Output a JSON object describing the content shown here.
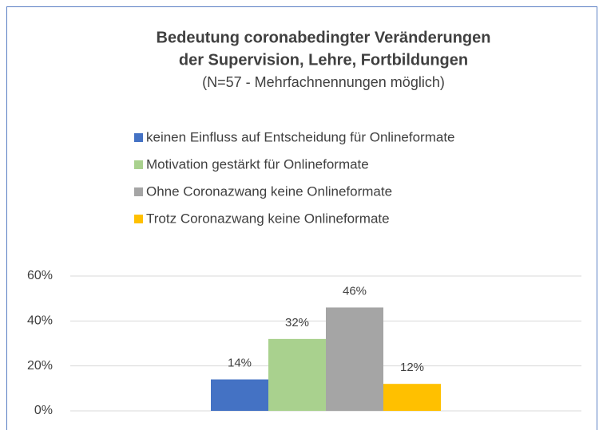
{
  "chart_data": {
    "type": "bar",
    "title": [
      "Bedeutung coronabedingter Veränderungen",
      "der Supervision, Lehre, Fortbildungen"
    ],
    "subtitle": "(N=57 - Mehrfachnennungen möglich)",
    "categories": [
      null
    ],
    "series": [
      {
        "name": "keinen Einfluss auf Entscheidung für Onlineformate",
        "color": "#4472c4",
        "values": [
          14
        ],
        "value_labels": [
          "14%"
        ]
      },
      {
        "name": "Motivation gestärkt für Onlineformate",
        "color": "#a9d18e",
        "values": [
          32
        ],
        "value_labels": [
          "32%"
        ]
      },
      {
        "name": "Ohne Coronazwang keine Onlineformate",
        "color": "#a5a5a5",
        "values": [
          46
        ],
        "value_labels": [
          "46%"
        ]
      },
      {
        "name": "Trotz Coronazwang keine Onlineformate",
        "color": "#ffc000",
        "values": [
          12
        ],
        "value_labels": [
          "12%"
        ]
      }
    ],
    "ylim": [
      0,
      60
    ],
    "yticks": [
      {
        "value": 0,
        "label": "0%"
      },
      {
        "value": 20,
        "label": "20%"
      },
      {
        "value": 40,
        "label": "40%"
      },
      {
        "value": 60,
        "label": "60%"
      }
    ],
    "grid": true,
    "legend": "top"
  }
}
